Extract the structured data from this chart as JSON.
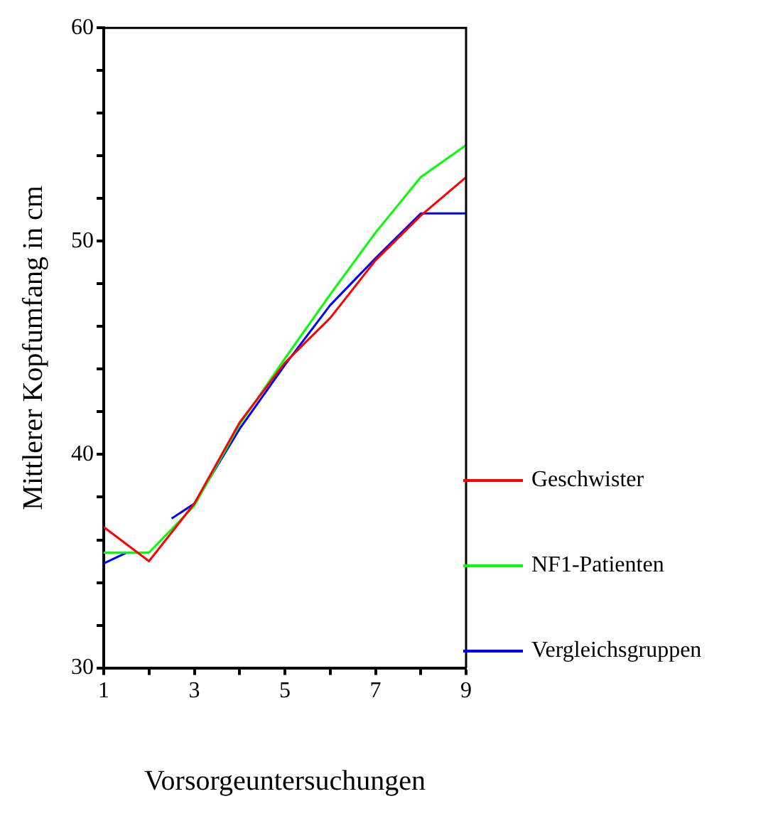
{
  "chart_data": {
    "type": "line",
    "xlabel": "Vorsorgeuntersuchungen",
    "ylabel": "Mittlerer Kopfumfang in cm",
    "x": [
      1,
      2,
      3,
      4,
      5,
      6,
      7,
      8,
      9
    ],
    "xlim": [
      1,
      9
    ],
    "xticks": [
      1,
      {
        "value": 2,
        "label": null
      },
      3,
      {
        "value": 4,
        "label": null
      },
      5,
      {
        "value": 6,
        "label": null
      },
      7,
      {
        "value": 8,
        "label": null
      },
      9
    ],
    "ylim": [
      30,
      60
    ],
    "yticks": [
      30,
      {
        "value": 32,
        "label": null
      },
      {
        "value": 34,
        "label": null
      },
      {
        "value": 36,
        "label": null
      },
      {
        "value": 38,
        "label": null
      },
      40,
      {
        "value": 42,
        "label": null
      },
      {
        "value": 44,
        "label": null
      },
      {
        "value": 46,
        "label": null
      },
      {
        "value": 48,
        "label": null
      },
      50,
      {
        "value": 52,
        "label": null
      },
      {
        "value": 54,
        "label": null
      },
      {
        "value": 56,
        "label": null
      },
      {
        "value": 58,
        "label": null
      },
      60
    ],
    "grid": false,
    "legend": "right",
    "marker": "none",
    "line_style": "solid",
    "series": [
      {
        "name": "Geschwister",
        "color": "#ff0000",
        "values": [
          36.6,
          35.0,
          37.7,
          41.5,
          44.3,
          46.4,
          49.1,
          51.2,
          53.0
        ]
      },
      {
        "name": "NF1-Patienten",
        "color": "#00ff00",
        "values": [
          35.4,
          35.4,
          37.6,
          41.4,
          44.5,
          47.5,
          50.4,
          53.0,
          54.5
        ]
      },
      {
        "name": "Vergleichsgruppen",
        "color": "#0000ff",
        "x": [
          1,
          1.5,
          2,
          2.5,
          3,
          4,
          5,
          6,
          7,
          8,
          9
        ],
        "values": [
          34.9,
          35.4,
          null,
          37.0,
          37.7,
          41.2,
          44.2,
          47.0,
          49.2,
          51.3,
          51.3
        ]
      }
    ]
  }
}
